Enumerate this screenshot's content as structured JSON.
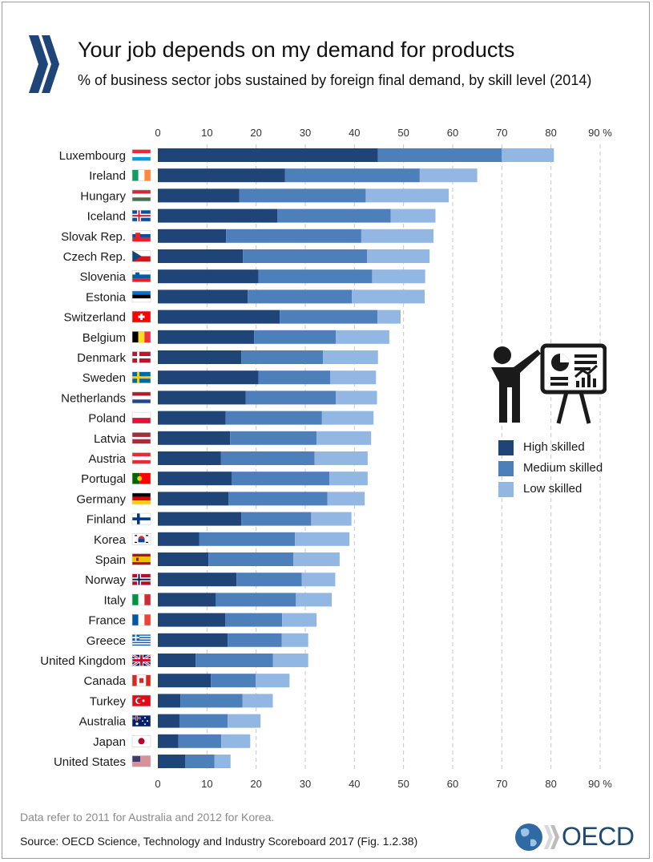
{
  "header": {
    "title": "Your job depends on my demand for products",
    "subtitle": "% of business sector jobs sustained by foreign final demand, by skill level (2014)"
  },
  "footer": {
    "note": "Data refer to 2011 for Australia and 2012 for Korea.",
    "source": "Source: OECD Science, Technology and Industry Scoreboard 2017 (Fig. 1.2.38)",
    "logo_text": "OECD"
  },
  "colors": {
    "high": "#1f4478",
    "medium": "#4d7fbb",
    "low": "#93b7e3",
    "oecd_blue": "#1f4b73"
  },
  "chart_data": {
    "type": "bar",
    "orientation": "horizontal",
    "stacked": true,
    "xlim": [
      0,
      90
    ],
    "x_ticks": [
      "0",
      "10",
      "20",
      "30",
      "40",
      "50",
      "60",
      "70",
      "80",
      "90 %"
    ],
    "grid": "vertical-dashed",
    "legend_position": "right",
    "categories": [
      "Luxembourg",
      "Ireland",
      "Hungary",
      "Iceland",
      "Slovak Rep.",
      "Czech Rep.",
      "Slovenia",
      "Estonia",
      "Switzerland",
      "Belgium",
      "Denmark",
      "Sweden",
      "Netherlands",
      "Poland",
      "Latvia",
      "Austria",
      "Portugal",
      "Germany",
      "Finland",
      "Korea",
      "Spain",
      "Norway",
      "Italy",
      "France",
      "Greece",
      "United Kingdom",
      "Canada",
      "Turkey",
      "Australia",
      "Japan",
      "United States"
    ],
    "flags": [
      "lu",
      "ie",
      "hu",
      "is",
      "sk",
      "cz",
      "si",
      "ee",
      "ch",
      "be",
      "dk",
      "se",
      "nl",
      "pl",
      "lv",
      "at",
      "pt",
      "de",
      "fi",
      "kr",
      "es",
      "no",
      "it",
      "fr",
      "gr",
      "gb",
      "ca",
      "tr",
      "au",
      "jp",
      "us"
    ],
    "series": [
      {
        "name": "High skilled",
        "color": "#1f4478",
        "values": [
          44.8,
          25.9,
          16.6,
          24.3,
          13.9,
          17.3,
          20.5,
          18.3,
          24.8,
          19.6,
          17.0,
          20.5,
          17.9,
          13.8,
          14.7,
          12.8,
          15.0,
          14.4,
          17.0,
          8.4,
          10.3,
          16.0,
          11.8,
          13.7,
          14.2,
          7.7,
          10.8,
          4.6,
          4.4,
          4.2,
          5.6
        ]
      },
      {
        "name": "Medium skilled",
        "color": "#4d7fbb",
        "values": [
          25.2,
          27.4,
          25.7,
          23.1,
          27.5,
          25.3,
          23.1,
          21.2,
          19.9,
          16.6,
          16.6,
          14.6,
          18.3,
          19.6,
          17.6,
          19.1,
          19.9,
          20.1,
          14.2,
          19.5,
          17.3,
          13.3,
          16.3,
          11.6,
          11.0,
          15.7,
          9.1,
          12.6,
          9.8,
          8.7,
          5.9
        ]
      },
      {
        "name": "Low skilled",
        "color": "#93b7e3",
        "values": [
          10.6,
          11.7,
          16.9,
          9.1,
          14.7,
          12.7,
          10.8,
          14.8,
          4.7,
          10.9,
          11.2,
          9.3,
          8.4,
          10.5,
          11.1,
          10.8,
          7.8,
          7.6,
          8.2,
          11.1,
          9.4,
          6.8,
          7.3,
          7.0,
          5.4,
          7.2,
          6.9,
          6.2,
          6.7,
          5.9,
          3.3
        ]
      }
    ]
  }
}
